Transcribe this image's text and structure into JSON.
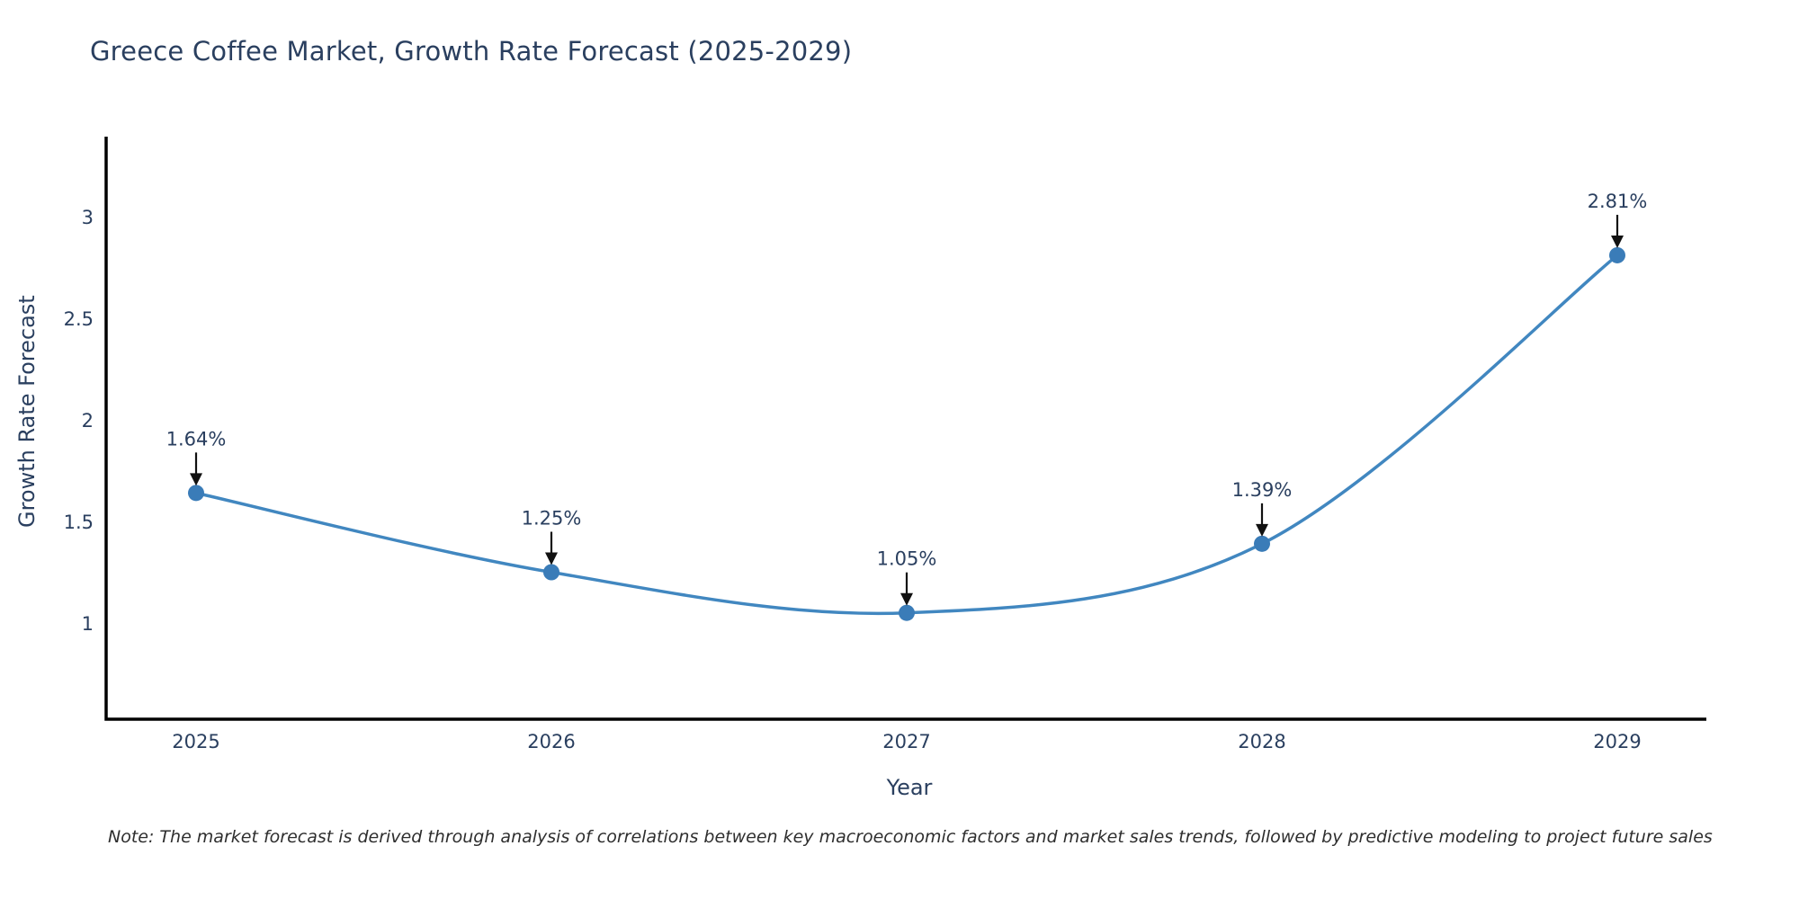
{
  "title": "Greece Coffee Market, Growth Rate Forecast (2025-2029)",
  "note": "Note: The market forecast is derived through analysis of correlations between key macroeconomic factors and market sales trends, followed by predictive modeling to project future sales",
  "chart_data": {
    "type": "line",
    "title": "Greece Coffee Market, Growth Rate Forecast (2025-2029)",
    "xlabel": "Year",
    "ylabel": "Growth Rate Forecast",
    "x": [
      2025,
      2026,
      2027,
      2028,
      2029
    ],
    "values": [
      1.64,
      1.25,
      1.05,
      1.39,
      2.81
    ],
    "point_labels": [
      "1.64%",
      "1.25%",
      "1.05%",
      "1.39%",
      "2.81%"
    ],
    "x_tick_labels": [
      "2025",
      "2026",
      "2027",
      "2028",
      "2029"
    ],
    "y_ticks": [
      1,
      1.5,
      2,
      2.5,
      3
    ],
    "y_tick_labels": [
      "1",
      "1.5",
      "2",
      "2.5",
      "3"
    ],
    "xlim": [
      2024.75,
      2029.25
    ],
    "ylim": [
      0.53,
      3.4
    ],
    "line_shape": "spline",
    "grid": "off",
    "legend": "off",
    "colors": {
      "line": "#4187c0",
      "marker": "#3a7cb8",
      "axis": "#000000",
      "tick_label": "#2a3f5f",
      "annotation_text": "#2a3f5f",
      "annotation_arrow": "#111111"
    }
  }
}
